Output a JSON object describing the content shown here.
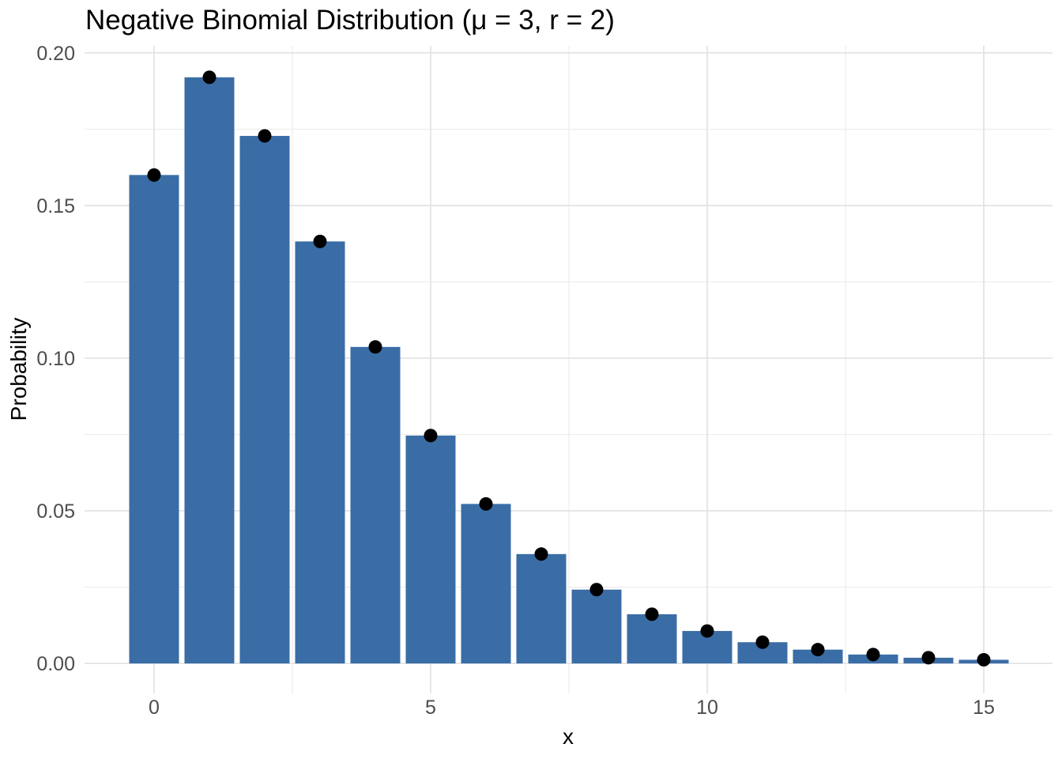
{
  "chart_data": {
    "type": "bar",
    "title": "Negative Binomial Distribution (μ = 3, r = 2)",
    "xlabel": "x",
    "ylabel": "Probability",
    "x": [
      0,
      1,
      2,
      3,
      4,
      5,
      6,
      7,
      8,
      9,
      10,
      11,
      12,
      13,
      14,
      15
    ],
    "values": [
      0.16,
      0.192,
      0.1728,
      0.13824,
      0.10368,
      0.07465,
      0.052255,
      0.035832,
      0.024186,
      0.016124,
      0.010642,
      0.006966,
      0.004528,
      0.002926,
      0.001881,
      0.001204
    ],
    "point_overlay": true,
    "bar_width_ratio": 0.9,
    "x_ticks": {
      "values": [
        0,
        5,
        10,
        15
      ],
      "labels": [
        "0",
        "5",
        "10",
        "15"
      ]
    },
    "y_ticks": {
      "values": [
        0,
        0.05,
        0.1,
        0.15,
        0.2
      ],
      "labels": [
        "0.00",
        "0.05",
        "0.10",
        "0.15",
        "0.20"
      ]
    },
    "x_minor": [
      2.5,
      7.5,
      12.5
    ],
    "y_minor": [
      0.025,
      0.075,
      0.125,
      0.175
    ],
    "xlim": [
      -1.257,
      16.243
    ],
    "ylim": [
      -0.0098,
      0.2023
    ],
    "grid": "major+minor",
    "legend": "none",
    "colors": {
      "bar": "#3A6DA6",
      "point": "#000000",
      "grid_major": "#e4e4e4",
      "grid_minor": "#ededed",
      "tick_label": "#4d4d4d",
      "title_text": "#000000",
      "axis_title_text": "#000000",
      "background": "#ffffff"
    }
  }
}
